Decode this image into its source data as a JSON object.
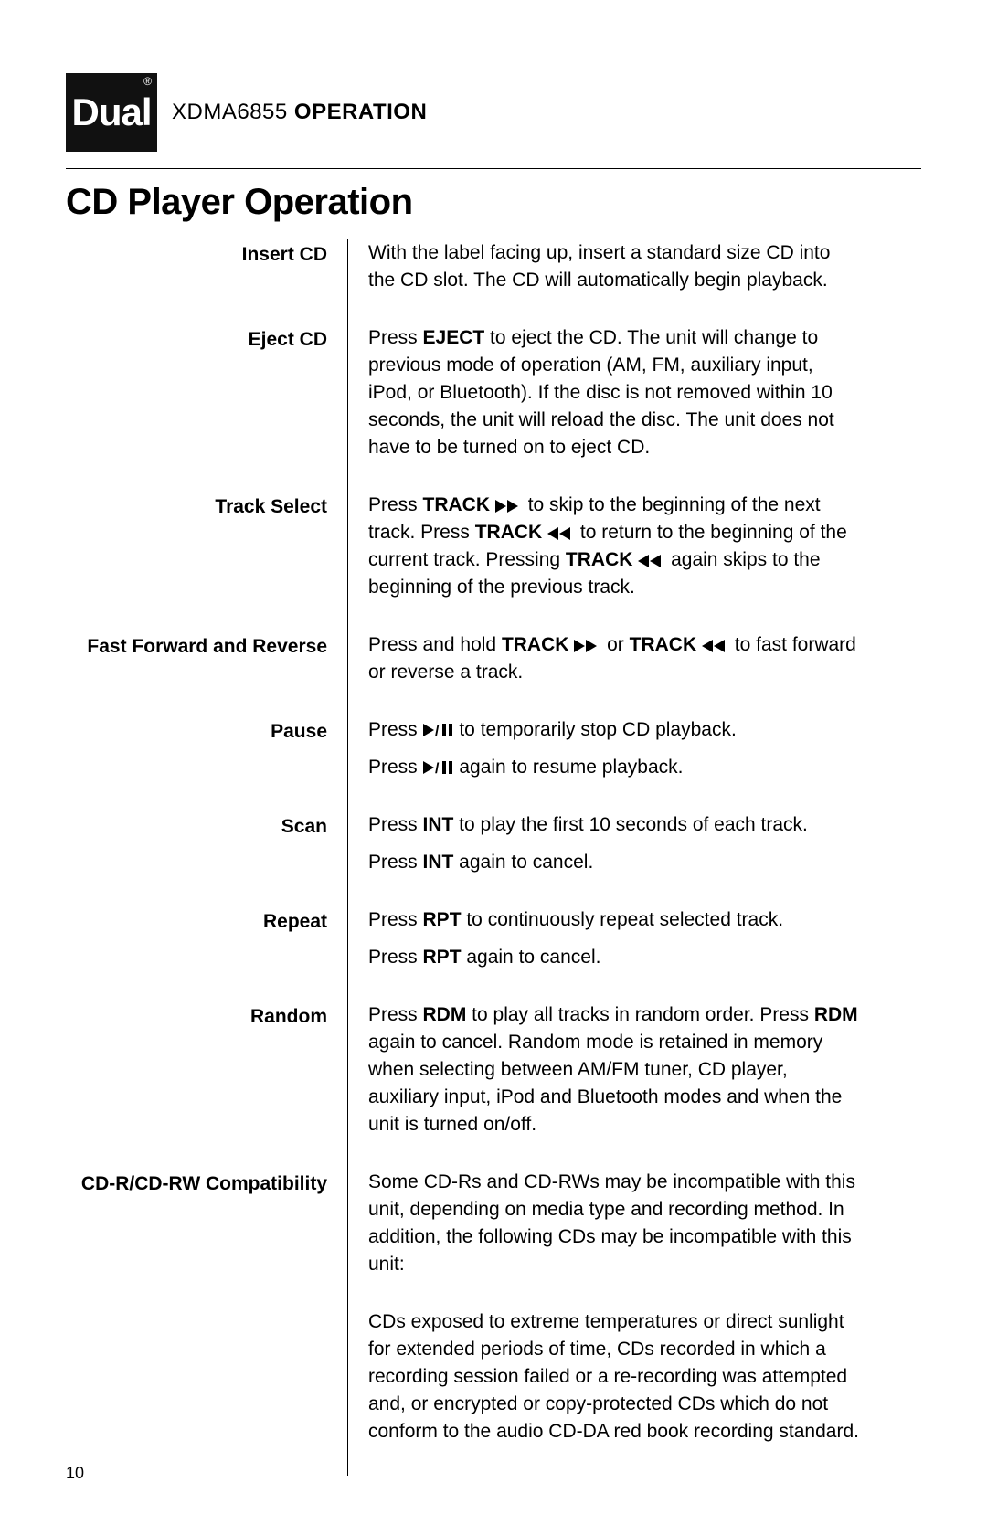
{
  "header": {
    "logo_text": "Dual",
    "product": "XDMA6855",
    "suffix": "OPERATION"
  },
  "section_title": "CD Player Operation",
  "page_number": "10",
  "rows": [
    {
      "label": "Insert CD",
      "body": [
        [
          {
            "t": "With the label facing up, insert a standard size CD into the CD slot. The CD will automatically begin playback."
          }
        ]
      ]
    },
    {
      "label": "Eject CD",
      "body": [
        [
          {
            "t": "Press "
          },
          {
            "t": "EJECT",
            "b": 1
          },
          {
            "t": " to eject the CD. The unit will change to previous mode of operation (AM, FM, auxiliary input, iPod, or Bluetooth). If the disc is not removed within 10 seconds, the unit will reload the disc. The unit does not have to be turned on to eject CD."
          }
        ]
      ]
    },
    {
      "label": "Track Select",
      "body": [
        [
          {
            "t": "Press "
          },
          {
            "t": "TRACK",
            "b": 1
          },
          {
            "t": " "
          },
          {
            "icon": "ff"
          },
          {
            "t": "  to skip to the beginning of the next track. Press "
          },
          {
            "t": "TRACK",
            "b": 1
          },
          {
            "t": " "
          },
          {
            "icon": "rw"
          },
          {
            "t": "  to return to the beginning of the current track. Pressing "
          },
          {
            "t": "TRACK",
            "b": 1
          },
          {
            "t": " "
          },
          {
            "icon": "rw"
          },
          {
            "t": "  again skips to the beginning of the previous track."
          }
        ]
      ]
    },
    {
      "label": "Fast Forward and Reverse",
      "body": [
        [
          {
            "t": "Press and hold "
          },
          {
            "t": "TRACK",
            "b": 1
          },
          {
            "t": " "
          },
          {
            "icon": "ff"
          },
          {
            "t": " or "
          },
          {
            "t": "TRACK",
            "b": 1
          },
          {
            "t": " "
          },
          {
            "icon": "rw"
          },
          {
            "t": "  to fast forward or reverse a track."
          }
        ]
      ]
    },
    {
      "label": "Pause",
      "body": [
        [
          {
            "t": "Press  "
          },
          {
            "icon": "playpause"
          },
          {
            "t": " to temporarily stop CD playback."
          }
        ],
        [
          {
            "t": "Press  "
          },
          {
            "icon": "playpause"
          },
          {
            "t": " again to resume playback."
          }
        ]
      ]
    },
    {
      "label": "Scan",
      "body": [
        [
          {
            "t": "Press "
          },
          {
            "t": "INT",
            "b": 1
          },
          {
            "t": " to play the first 10 seconds of each track."
          }
        ],
        [
          {
            "t": "Press "
          },
          {
            "t": "INT",
            "b": 1
          },
          {
            "t": " again to cancel."
          }
        ]
      ]
    },
    {
      "label": "Repeat",
      "body": [
        [
          {
            "t": "Press "
          },
          {
            "t": "RPT",
            "b": 1
          },
          {
            "t": " to continuously repeat selected track."
          }
        ],
        [
          {
            "t": "Press "
          },
          {
            "t": "RPT",
            "b": 1
          },
          {
            "t": " again to cancel."
          }
        ]
      ]
    },
    {
      "label": "Random",
      "body": [
        [
          {
            "t": "Press "
          },
          {
            "t": "RDM",
            "b": 1
          },
          {
            "t": " to play all tracks in random order. Press "
          },
          {
            "t": "RDM",
            "b": 1
          },
          {
            "t": " again to cancel. Random mode is retained in memory when selecting between AM/FM tuner, CD player, auxiliary input, iPod and Bluetooth modes and when the unit is turned on/off."
          }
        ]
      ]
    },
    {
      "label": "CD-R/CD-RW Compatibility",
      "body": [
        [
          {
            "t": "Some CD-Rs and CD-RWs may be incompatible with this unit, depending on media type and recording method. In addition, the following CDs may be incompatible with this unit:"
          }
        ]
      ]
    },
    {
      "label": "",
      "body": [
        [
          {
            "t": "CDs exposed to extreme temperatures or direct sunlight for extended periods of time, CDs recorded in which a recording session failed or a re-recording was attempted and, or encrypted or copy-protected CDs which do not conform to the audio CD-DA red book recording standard."
          }
        ]
      ]
    }
  ]
}
